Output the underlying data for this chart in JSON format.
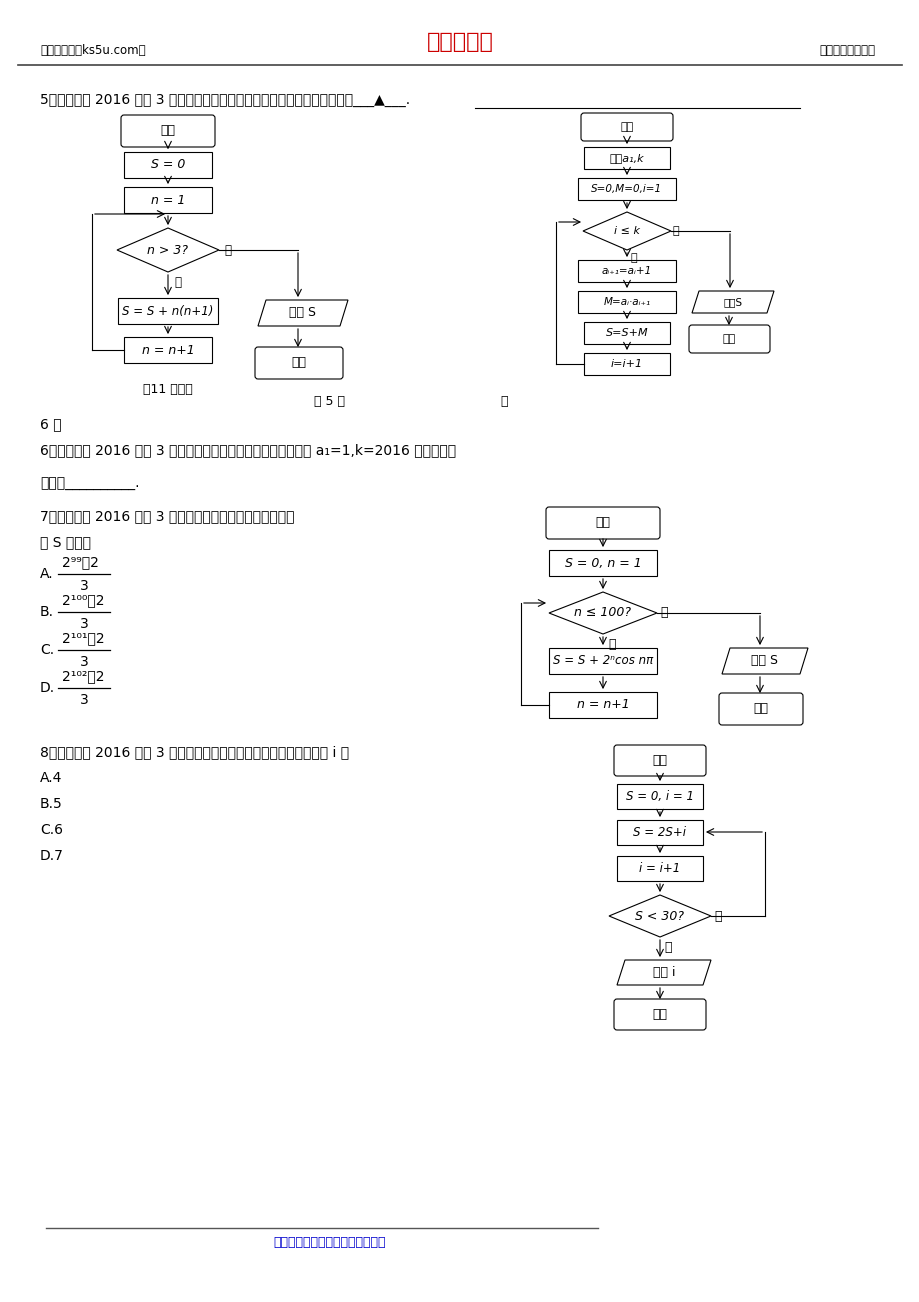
{
  "header_left": "高考资源网（ks5u.com）",
  "header_center": "高考资源网",
  "header_right": "您身边的高考专家",
  "footer_text": "高考资源网版权所有，侵权必究！",
  "q5_text": "5、（济宁市 2016 高三 3 月模拟）执行如图所示的程序框图，输出的结果是___▲___.",
  "q6_line1": "6、（临沂市 2016 高三 3 月模拟）如右上图所示的程序框图，当 a₁=1,k=2016 时，输出的",
  "q6_line2": "结果为__________.",
  "q7_line1": "7、（青岛市 2016 高三 3 月模拟）如图所示的程序框图，输",
  "q7_line2": "出 S 的值为",
  "q8_line1": "8、（日照市 2016 高三 3 月模拟）执行如图所示的程序框图，输出的 i 为",
  "caption_11": "（11 题图）",
  "caption_5": "第 5 题",
  "caption_6a": "第",
  "caption_6b": "6 题",
  "bg_color": "#ffffff",
  "text_color": "#000000",
  "red_color": "#cc0000",
  "blue_color": "#0000cc"
}
